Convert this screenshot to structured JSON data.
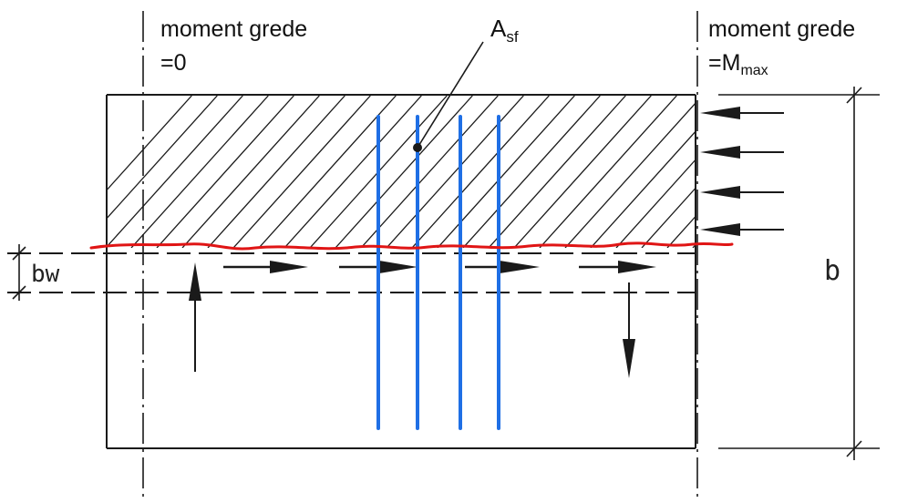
{
  "labels": {
    "left_title_line1": "moment grede",
    "left_title_line2": "=0",
    "right_title_line1": "moment grede",
    "right_title_line2_prefix": "=M",
    "right_title_line2_sub": "max",
    "asf_main": "A",
    "asf_sub": "sf",
    "bw": "bw",
    "b": "b"
  },
  "colors": {
    "ink": "#1a1a1a",
    "rebar": "#1f6fe5",
    "crack": "#e01515",
    "background": "#ffffff"
  }
}
